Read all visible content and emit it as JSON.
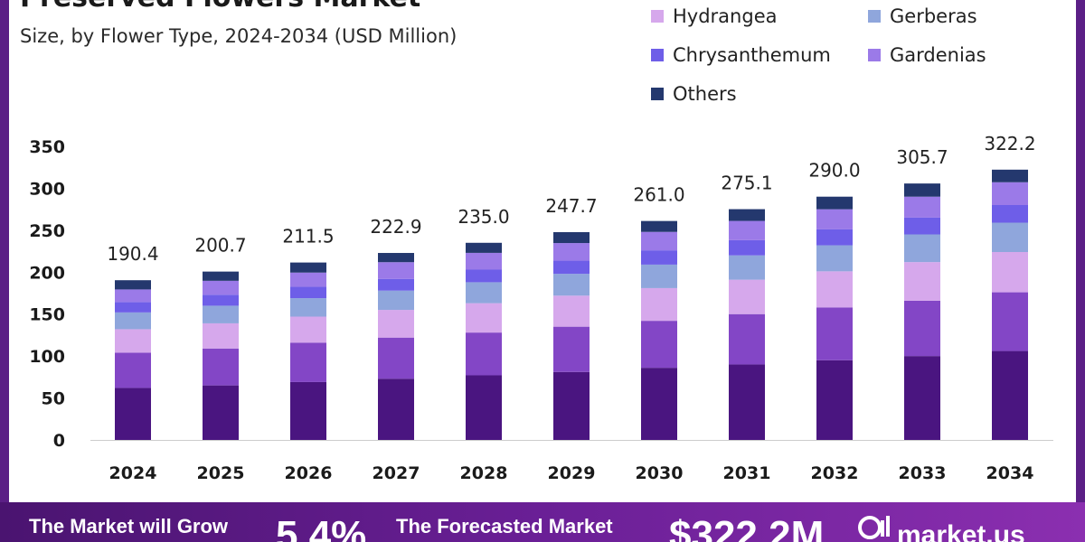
{
  "header": {
    "title": "Preserved Flowers Market",
    "subtitle": "Size, by Flower Type, 2024-2034 (USD Million)"
  },
  "banner": {
    "grow_label": "The Market will Grow",
    "cagr": "5.4%",
    "forecast_label": "The Forecasted Market",
    "size": "$322.2M",
    "logo_icon": "market-us-logo",
    "brand": "market.us"
  },
  "colors": {
    "frame": "#5b1f86",
    "axis": "#cccccc"
  },
  "chart_data": {
    "type": "bar",
    "stacked": true,
    "title": "Preserved Flowers Market",
    "subtitle": "Size, by Flower Type, 2024-2034 (USD Million)",
    "xlabel": "",
    "ylabel": "",
    "ylim": [
      0,
      350
    ],
    "yticks": [
      0,
      50,
      100,
      150,
      200,
      250,
      300,
      350
    ],
    "grid": false,
    "legend_position": "top-right",
    "categories": [
      "2024",
      "2025",
      "2026",
      "2027",
      "2028",
      "2029",
      "2030",
      "2031",
      "2032",
      "2033",
      "2034"
    ],
    "totals": [
      190.4,
      200.7,
      211.5,
      222.9,
      235.0,
      247.7,
      261.0,
      275.1,
      290.0,
      305.7,
      322.2
    ],
    "series": [
      {
        "name": "",
        "color": "#4a1580",
        "values": [
          62.0,
          65.0,
          69.0,
          73.0,
          77.0,
          81.0,
          86.0,
          90.0,
          95.0,
          100.0,
          106.0
        ]
      },
      {
        "name": "",
        "color": "#8346c6",
        "values": [
          42.0,
          44.0,
          47.0,
          49.0,
          51.0,
          54.0,
          56.0,
          60.0,
          63.0,
          66.0,
          70.0
        ]
      },
      {
        "name": "Hydrangea",
        "color": "#d6a8ec",
        "values": [
          28.0,
          30.0,
          31.0,
          33.0,
          35.0,
          37.0,
          39.0,
          41.0,
          43.0,
          46.0,
          48.0
        ]
      },
      {
        "name": "Gerberas",
        "color": "#8fa6dc",
        "values": [
          20.0,
          21.0,
          22.0,
          23.0,
          25.0,
          26.0,
          28.0,
          29.0,
          31.0,
          33.0,
          35.0
        ]
      },
      {
        "name": "Chrysanthemum",
        "color": "#6e5ee8",
        "values": [
          12.4,
          13.0,
          13.5,
          14.0,
          15.0,
          15.7,
          17.0,
          18.1,
          19.0,
          20.0,
          21.0
        ]
      },
      {
        "name": "Gardenias",
        "color": "#9b7ae8",
        "values": [
          15.0,
          16.7,
          17.0,
          19.9,
          20.0,
          21.0,
          22.0,
          23.0,
          24.0,
          25.0,
          27.2
        ]
      },
      {
        "name": "Others",
        "color": "#24386e",
        "values": [
          11.0,
          11.0,
          12.0,
          11.0,
          12.0,
          13.0,
          13.0,
          14.0,
          15.0,
          15.7,
          15.0
        ]
      }
    ]
  }
}
